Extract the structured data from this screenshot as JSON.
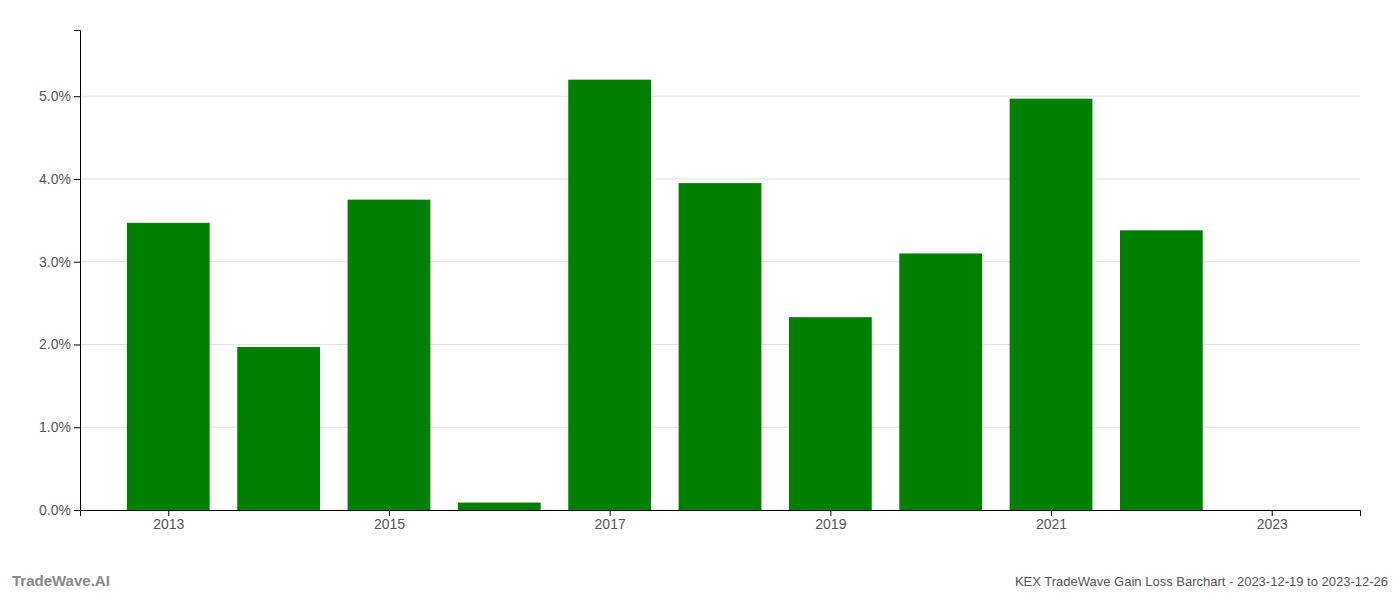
{
  "chart_data": {
    "type": "bar",
    "x": [
      2013,
      2014,
      2015,
      2016,
      2017,
      2018,
      2019,
      2020,
      2021,
      2022,
      2023
    ],
    "values": [
      0.0347,
      0.0197,
      0.0375,
      0.0009,
      0.052,
      0.0395,
      0.0233,
      0.031,
      0.0497,
      0.0338,
      null
    ],
    "color": "#008000",
    "xlim": [
      2012.2,
      2023.8
    ],
    "xticks": [
      2013,
      2015,
      2017,
      2019,
      2021,
      2023
    ],
    "ylim": [
      0,
      0.058
    ],
    "yticks": [
      {
        "value": 0.0,
        "label": "0.0%"
      },
      {
        "value": 0.01,
        "label": "1.0%"
      },
      {
        "value": 0.02,
        "label": "2.0%"
      },
      {
        "value": 0.03,
        "label": "3.0%"
      },
      {
        "value": 0.04,
        "label": "4.0%"
      },
      {
        "value": 0.05,
        "label": "5.0%"
      }
    ],
    "grid": true,
    "annotations": [
      "TradeWave.AI",
      "KEX TradeWave Gain Loss Barchart - 2023-12-19 to 2023-12-26"
    ]
  }
}
